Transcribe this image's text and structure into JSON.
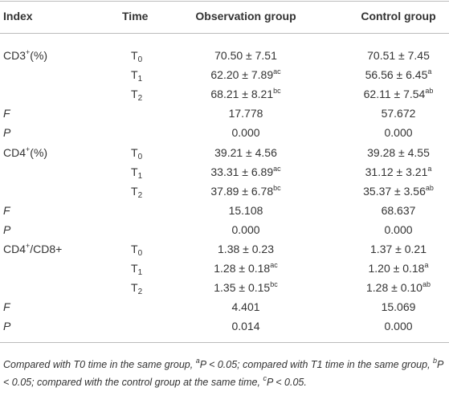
{
  "table": {
    "header": [
      "Index",
      "Time",
      "Observation group",
      "Control group"
    ],
    "rows": [
      [
        [
          {
            "t": "CD3"
          },
          {
            "t": "+",
            "s": "sup"
          },
          {
            "t": "(%)"
          }
        ],
        [
          {
            "t": "T"
          },
          {
            "t": "0",
            "s": "sub"
          }
        ],
        [
          {
            "t": "70.50 ± 7.51"
          }
        ],
        [
          {
            "t": "70.51 ± 7.45"
          }
        ]
      ],
      [
        [],
        [
          {
            "t": "T"
          },
          {
            "t": "1",
            "s": "sub"
          }
        ],
        [
          {
            "t": "62.20 ± 7.89"
          },
          {
            "t": "ac",
            "s": "sup"
          }
        ],
        [
          {
            "t": "56.56 ± 6.45"
          },
          {
            "t": "a",
            "s": "sup"
          }
        ]
      ],
      [
        [],
        [
          {
            "t": "T"
          },
          {
            "t": "2",
            "s": "sub"
          }
        ],
        [
          {
            "t": "68.21 ± 8.21"
          },
          {
            "t": "bc",
            "s": "sup"
          }
        ],
        [
          {
            "t": "62.11 ± 7.54"
          },
          {
            "t": "ab",
            "s": "sup"
          }
        ]
      ],
      [
        [
          {
            "t": "F",
            "s": "em"
          }
        ],
        [],
        [
          {
            "t": "17.778"
          }
        ],
        [
          {
            "t": "57.672"
          }
        ]
      ],
      [
        [
          {
            "t": "P",
            "s": "em"
          }
        ],
        [],
        [
          {
            "t": "0.000"
          }
        ],
        [
          {
            "t": "0.000"
          }
        ]
      ],
      [
        [
          {
            "t": "CD4"
          },
          {
            "t": "+",
            "s": "sup"
          },
          {
            "t": "(%)"
          }
        ],
        [
          {
            "t": "T"
          },
          {
            "t": "0",
            "s": "sub"
          }
        ],
        [
          {
            "t": "39.21 ± 4.56"
          }
        ],
        [
          {
            "t": "39.28 ± 4.55"
          }
        ]
      ],
      [
        [],
        [
          {
            "t": "T"
          },
          {
            "t": "1",
            "s": "sub"
          }
        ],
        [
          {
            "t": "33.31 ± 6.89"
          },
          {
            "t": "ac",
            "s": "sup"
          }
        ],
        [
          {
            "t": "31.12 ± 3.21"
          },
          {
            "t": "a",
            "s": "sup"
          }
        ]
      ],
      [
        [],
        [
          {
            "t": "T"
          },
          {
            "t": "2",
            "s": "sub"
          }
        ],
        [
          {
            "t": "37.89 ± 6.78"
          },
          {
            "t": "bc",
            "s": "sup"
          }
        ],
        [
          {
            "t": "35.37 ± 3.56"
          },
          {
            "t": "ab",
            "s": "sup"
          }
        ]
      ],
      [
        [
          {
            "t": "F",
            "s": "em"
          }
        ],
        [],
        [
          {
            "t": "15.108"
          }
        ],
        [
          {
            "t": "68.637"
          }
        ]
      ],
      [
        [
          {
            "t": "P",
            "s": "em"
          }
        ],
        [],
        [
          {
            "t": "0.000"
          }
        ],
        [
          {
            "t": "0.000"
          }
        ]
      ],
      [
        [
          {
            "t": "CD4"
          },
          {
            "t": "+",
            "s": "sup"
          },
          {
            "t": "/CD8+"
          }
        ],
        [
          {
            "t": "T"
          },
          {
            "t": "0",
            "s": "sub"
          }
        ],
        [
          {
            "t": "1.38 ± 0.23"
          }
        ],
        [
          {
            "t": "1.37 ± 0.21"
          }
        ]
      ],
      [
        [],
        [
          {
            "t": "T"
          },
          {
            "t": "1",
            "s": "sub"
          }
        ],
        [
          {
            "t": "1.28 ± 0.18"
          },
          {
            "t": "ac",
            "s": "sup"
          }
        ],
        [
          {
            "t": "1.20 ± 0.18"
          },
          {
            "t": "a",
            "s": "sup"
          }
        ]
      ],
      [
        [],
        [
          {
            "t": "T"
          },
          {
            "t": "2",
            "s": "sub"
          }
        ],
        [
          {
            "t": "1.35 ± 0.15"
          },
          {
            "t": "bc",
            "s": "sup"
          }
        ],
        [
          {
            "t": "1.28 ± 0.10"
          },
          {
            "t": "ab",
            "s": "sup"
          }
        ]
      ],
      [
        [
          {
            "t": "F",
            "s": "em"
          }
        ],
        [],
        [
          {
            "t": "4.401"
          }
        ],
        [
          {
            "t": "15.069"
          }
        ]
      ],
      [
        [
          {
            "t": "P",
            "s": "em"
          }
        ],
        [],
        [
          {
            "t": "0.014"
          }
        ],
        [
          {
            "t": "0.000"
          }
        ]
      ]
    ]
  },
  "footnote": [
    {
      "t": "Compared with T0 time in the same group, "
    },
    {
      "t": "a",
      "s": "sup"
    },
    {
      "t": "P < 0.05; compared with T1 time in the same group, "
    },
    {
      "t": "b",
      "s": "sup"
    },
    {
      "t": "P < 0.05; compared with the control group at the same time, "
    },
    {
      "t": "c",
      "s": "sup"
    },
    {
      "t": "P < 0.05."
    }
  ]
}
